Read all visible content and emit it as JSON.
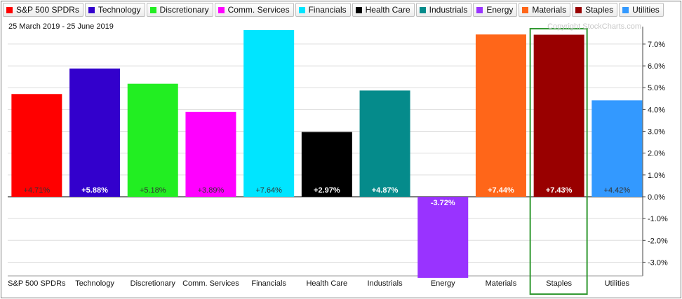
{
  "chart_data": {
    "type": "bar",
    "date_range": "25 March 2019 - 25 June 2019",
    "watermark": "Copyright StockCharts.com",
    "categories": [
      "S&P 500 SPDRs",
      "Technology",
      "Discretionary",
      "Comm. Services",
      "Financials",
      "Health Care",
      "Industrials",
      "Energy",
      "Materials",
      "Staples",
      "Utilities"
    ],
    "values": [
      4.71,
      5.88,
      5.18,
      3.89,
      7.64,
      2.97,
      4.87,
      -3.72,
      7.44,
      7.43,
      4.42
    ],
    "value_labels": [
      "+4.71%",
      "+5.88%",
      "+5.18%",
      "+3.89%",
      "+7.64%",
      "+2.97%",
      "+4.87%",
      "-3.72%",
      "+7.44%",
      "+7.43%",
      "+4.42%"
    ],
    "colors": [
      "#ff0000",
      "#3300cc",
      "#22ee22",
      "#ff00ff",
      "#00e5ff",
      "#000000",
      "#058b8b",
      "#9933ff",
      "#ff6619",
      "#990000",
      "#3399ff"
    ],
    "label_colors": [
      "#333333",
      "#ffffff",
      "#333333",
      "#333333",
      "#333333",
      "#ffffff",
      "#ffffff",
      "#ffffff",
      "#ffffff",
      "#ffffff",
      "#333333"
    ],
    "y_ticks": [
      7.0,
      6.0,
      5.0,
      4.0,
      3.0,
      2.0,
      1.0,
      0.0,
      -1.0,
      -2.0,
      -3.0
    ],
    "y_tick_labels": [
      "7.0%",
      "6.0%",
      "5.0%",
      "4.0%",
      "3.0%",
      "2.0%",
      "1.0%",
      "0.0%",
      "-1.0%",
      "-2.0%",
      "-3.0%"
    ],
    "ylim": [
      -3.72,
      7.64
    ],
    "highlight_category": "Staples",
    "highlight_color": "#339933",
    "grid": true,
    "legend_placement": "top"
  },
  "legend": [
    {
      "label": "S&P 500 SPDRs",
      "color": "#ff0000"
    },
    {
      "label": "Technology",
      "color": "#3300cc"
    },
    {
      "label": "Discretionary",
      "color": "#22ee22"
    },
    {
      "label": "Comm. Services",
      "color": "#ff00ff"
    },
    {
      "label": "Financials",
      "color": "#00e5ff"
    },
    {
      "label": "Health Care",
      "color": "#000000"
    },
    {
      "label": "Industrials",
      "color": "#058b8b"
    },
    {
      "label": "Energy",
      "color": "#9933ff"
    },
    {
      "label": "Materials",
      "color": "#ff6619"
    },
    {
      "label": "Staples",
      "color": "#990000"
    },
    {
      "label": "Utilities",
      "color": "#3399ff"
    }
  ]
}
